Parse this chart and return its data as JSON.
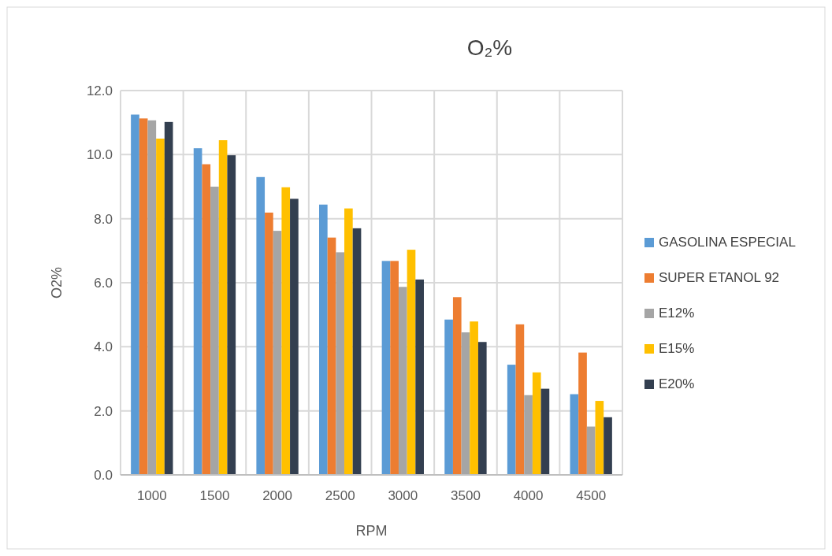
{
  "chart_data": {
    "type": "bar",
    "title": "O₂%",
    "xlabel": "RPM",
    "ylabel": "O2%",
    "categories": [
      "1000",
      "1500",
      "2000",
      "2500",
      "3000",
      "3500",
      "4000",
      "4500"
    ],
    "series": [
      {
        "name": "GASOLINA ESPECIAL",
        "color": "#5b9bd5",
        "values": [
          11.25,
          10.2,
          9.3,
          8.44,
          6.68,
          4.85,
          3.44,
          2.52
        ]
      },
      {
        "name": "SUPER ETANOL 92",
        "color": "#ed7d31",
        "values": [
          11.13,
          9.7,
          8.19,
          7.41,
          6.68,
          5.55,
          4.7,
          3.82
        ]
      },
      {
        "name": "E12%",
        "color": "#a5a5a5",
        "values": [
          11.07,
          9.0,
          7.62,
          6.95,
          5.87,
          4.45,
          2.49,
          1.51
        ]
      },
      {
        "name": "E15%",
        "color": "#ffc000",
        "values": [
          10.5,
          10.45,
          8.98,
          8.32,
          7.03,
          4.79,
          3.2,
          2.31
        ]
      },
      {
        "name": "E20%",
        "color": "#333f50",
        "values": [
          11.02,
          9.98,
          8.62,
          7.7,
          6.1,
          4.15,
          2.69,
          1.8
        ]
      }
    ],
    "ylim": [
      0,
      12
    ],
    "yticks": [
      {
        "value": 0,
        "label": "0.0"
      },
      {
        "value": 2,
        "label": "2.0"
      },
      {
        "value": 4,
        "label": "4.0"
      },
      {
        "value": 6,
        "label": "6.0"
      },
      {
        "value": 8,
        "label": "8.0"
      },
      {
        "value": 10,
        "label": "10.0"
      },
      {
        "value": 12,
        "label": "12.0"
      }
    ],
    "grid": true,
    "legend": "right"
  }
}
